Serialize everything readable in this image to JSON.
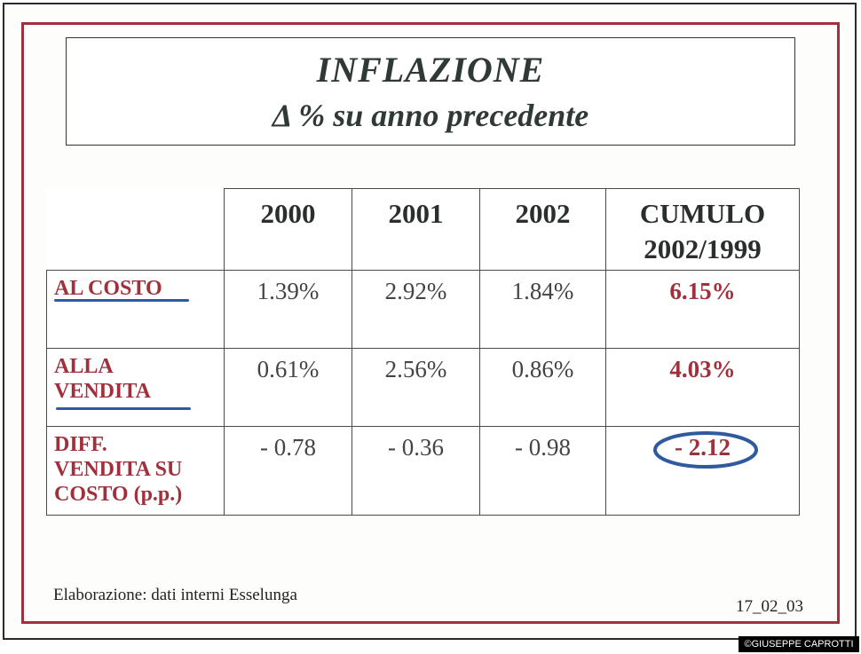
{
  "title": {
    "line1": "INFLAZIONE",
    "line2": "Δ % su anno precedente"
  },
  "table": {
    "headers": [
      "2000",
      "2001",
      "2002",
      "CUMULO",
      "2002/1999"
    ],
    "rows": [
      {
        "label": [
          "AL COSTO"
        ],
        "values": [
          "1.39%",
          "2.92%",
          "1.84%"
        ],
        "cumulo": "6.15%"
      },
      {
        "label": [
          "ALLA",
          "VENDITA"
        ],
        "values": [
          "0.61%",
          "2.56%",
          "0.86%"
        ],
        "cumulo": "4.03%"
      },
      {
        "label": [
          "DIFF.",
          "VENDITA SU",
          "COSTO (p.p.)"
        ],
        "values": [
          "- 0.78",
          "- 0.36",
          "- 0.98"
        ],
        "cumulo": "- 2.12"
      }
    ]
  },
  "footer": {
    "source": "Elaborazione: dati interni Esselunga",
    "date": "17_02_03"
  },
  "copyright": "©GIUSEPPE CAPROTTI",
  "colors": {
    "frame_red": "#a0303c",
    "highlight_blue": "#2f5aa0",
    "label_red": "#a0303c"
  }
}
